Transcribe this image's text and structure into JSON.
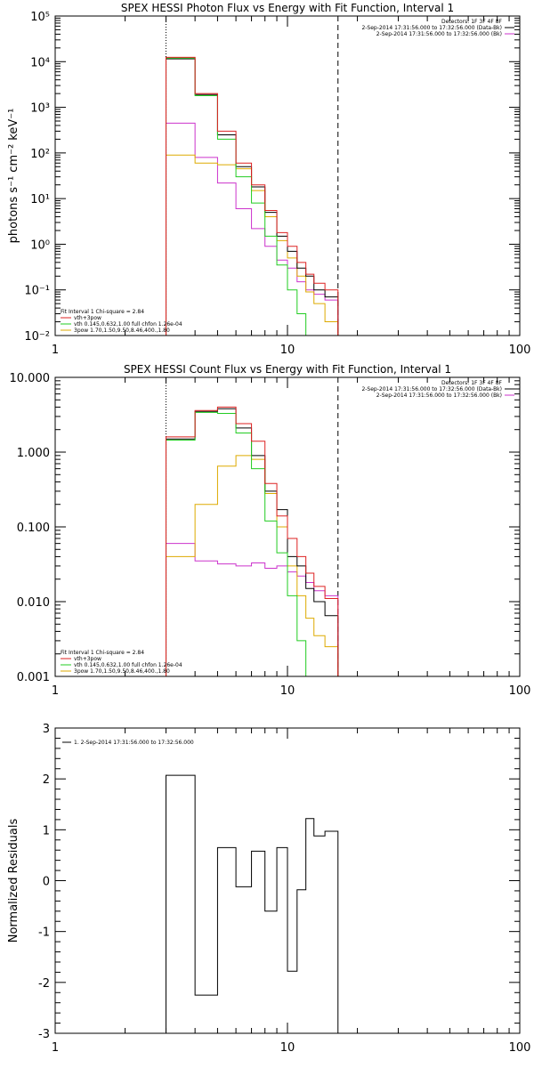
{
  "chart_data": [
    {
      "type": "line",
      "title": "SPEX HESSI Photon Flux vs Energy with Fit Function, Interval 1",
      "ylabel": "photons s⁻¹ cm⁻² keV⁻¹",
      "xscale": "log",
      "yscale": "log",
      "xlim": [
        1,
        100
      ],
      "ylim": [
        0.01,
        100000
      ],
      "x_tick_labels": [
        "1",
        "10",
        "100"
      ],
      "y_tick_labels": [
        "10⁻²",
        "10⁻¹",
        "10⁰",
        "10¹",
        "10²",
        "10³",
        "10⁴",
        "10⁵"
      ],
      "y_tick_values": [
        0.01,
        0.1,
        1,
        10,
        100,
        1000,
        10000,
        100000
      ],
      "dotted_line_x": 3.0,
      "dashed_line_x": 16.5,
      "top_legend": [
        {
          "text": "Detectors: 1F 3F 4F 8F",
          "color": "#000000"
        },
        {
          "text": "2-Sep-2014 17:31:56.000 to 17:32:56.000 (Data-Bk)",
          "color": "#000000"
        },
        {
          "text": "2-Sep-2014 17:31:56.000 to 17:32:56.000 (Bk)",
          "color": "#cc33cc"
        }
      ],
      "fit_legend": [
        {
          "text": "Fit Interval 1   Chi-square = 2.84",
          "color": "#000000"
        },
        {
          "text": "vth+3pow",
          "color": "#dd2222"
        },
        {
          "text": "vth 0.145,0.632,1.00  full chfon 1.26e-04",
          "color": "#22cc22"
        },
        {
          "text": "3pow 1.70,1.50,9.50,8.46,400.,1.80",
          "color": "#ddaa00"
        }
      ],
      "bin_edges": [
        3.0,
        4.0,
        5.0,
        6.0,
        7.0,
        8.0,
        9.0,
        10.0,
        11.0,
        12.0,
        13.0,
        14.5,
        16.5
      ],
      "series": [
        {
          "name": "Data-Bk",
          "color": "#000000",
          "values": [
            11500,
            1900,
            250,
            50,
            18,
            5.0,
            1.5,
            0.7,
            0.3,
            0.2,
            0.1,
            0.07
          ]
        },
        {
          "name": "vth+3pow",
          "color": "#dd2222",
          "values": [
            12500,
            2000,
            300,
            60,
            20,
            5.5,
            1.8,
            0.9,
            0.4,
            0.22,
            0.14,
            0.1
          ]
        },
        {
          "name": "vth",
          "color": "#22cc22",
          "values": [
            12000,
            1800,
            200,
            30,
            8,
            1.5,
            0.35,
            0.1,
            0.03
          ]
        },
        {
          "name": "3pow",
          "color": "#ddaa00",
          "values": [
            90,
            60,
            55,
            45,
            15,
            4.0,
            1.2,
            0.5,
            0.2,
            0.09,
            0.05,
            0.02
          ]
        },
        {
          "name": "Bk",
          "color": "#cc33cc",
          "values": [
            450,
            80,
            22,
            6,
            2.2,
            0.9,
            0.45,
            0.3,
            0.15,
            0.1,
            0.08,
            0.06
          ]
        }
      ]
    },
    {
      "type": "line",
      "title": "SPEX HESSI Count Flux vs Energy with Fit Function, Interval 1",
      "ylabel": "",
      "xscale": "log",
      "yscale": "log",
      "xlim": [
        1,
        100
      ],
      "ylim": [
        0.001,
        10
      ],
      "x_tick_labels": [
        "1",
        "10",
        "100"
      ],
      "y_tick_labels": [
        "0.001",
        "0.010",
        "0.100",
        "1.000",
        "10.000"
      ],
      "y_tick_values": [
        0.001,
        0.01,
        0.1,
        1,
        10
      ],
      "dotted_line_x": 3.0,
      "dashed_line_x": 16.5,
      "top_legend": [
        {
          "text": "Detectors: 1F 3F 4F 8F",
          "color": "#000000"
        },
        {
          "text": "2-Sep-2014 17:31:56.000 to 17:32:56.000 (Data-Bk)",
          "color": "#000000"
        },
        {
          "text": "2-Sep-2014 17:31:56.000 to 17:32:56.000 (Bk)",
          "color": "#cc33cc"
        }
      ],
      "fit_legend": [
        {
          "text": "Fit Interval 1   Chi-square = 2.84",
          "color": "#000000"
        },
        {
          "text": "vth+3pow",
          "color": "#dd2222"
        },
        {
          "text": "vth 0.145,0.632,1.00  full chfon 1.26e-04",
          "color": "#22cc22"
        },
        {
          "text": "3pow 1.70,1.50,9.50,8.46,400.,1.80",
          "color": "#ddaa00"
        }
      ],
      "bin_edges": [
        3.0,
        4.0,
        5.0,
        6.0,
        7.0,
        8.0,
        9.0,
        10.0,
        11.0,
        12.0,
        13.0,
        14.5,
        16.5
      ],
      "series": [
        {
          "name": "Data-Bk",
          "color": "#000000",
          "values": [
            1.5,
            3.5,
            3.8,
            2.1,
            0.9,
            0.3,
            0.17,
            0.04,
            0.03,
            0.015,
            0.01,
            0.0065
          ]
        },
        {
          "name": "vth+3pow",
          "color": "#dd2222",
          "values": [
            1.6,
            3.6,
            4.0,
            2.4,
            1.4,
            0.38,
            0.14,
            0.07,
            0.04,
            0.024,
            0.016,
            0.011
          ]
        },
        {
          "name": "vth",
          "color": "#22cc22",
          "values": [
            1.45,
            3.4,
            3.3,
            1.8,
            0.6,
            0.12,
            0.045,
            0.012,
            0.003,
            0.001
          ]
        },
        {
          "name": "3pow",
          "color": "#ddaa00",
          "values": [
            0.04,
            0.2,
            0.65,
            0.9,
            0.8,
            0.28,
            0.1,
            0.03,
            0.012,
            0.006,
            0.0035,
            0.0025
          ]
        },
        {
          "name": "Bk",
          "color": "#cc33cc",
          "values": [
            0.06,
            0.035,
            0.032,
            0.03,
            0.033,
            0.028,
            0.03,
            0.025,
            0.022,
            0.018,
            0.014,
            0.012
          ]
        }
      ]
    },
    {
      "type": "line",
      "title": "",
      "ylabel": "Normalized Residuals",
      "xscale": "log",
      "yscale": "linear",
      "xlim": [
        1,
        100
      ],
      "ylim": [
        -3,
        3
      ],
      "x_tick_labels": [
        "1",
        "10",
        "100"
      ],
      "y_tick_labels": [
        "-3",
        "-2",
        "-1",
        "0",
        "1",
        "2",
        "3"
      ],
      "y_tick_values": [
        -3,
        -2,
        -1,
        0,
        1,
        2,
        3
      ],
      "legend": [
        {
          "text": "1.  2-Sep-2014 17:31:56.000 to 17:32:56.000",
          "color": "#000000"
        }
      ],
      "bin_edges": [
        3.0,
        4.0,
        5.0,
        6.0,
        7.0,
        8.0,
        9.0,
        10.0,
        11.0,
        12.0,
        13.0,
        14.5,
        16.5
      ],
      "series": [
        {
          "name": "",
          "color": "#000000",
          "values": [
            2.07,
            -2.25,
            0.65,
            -0.12,
            0.58,
            -0.6,
            0.65,
            -1.78,
            -0.18,
            1.22,
            0.88,
            0.97
          ]
        }
      ]
    }
  ]
}
